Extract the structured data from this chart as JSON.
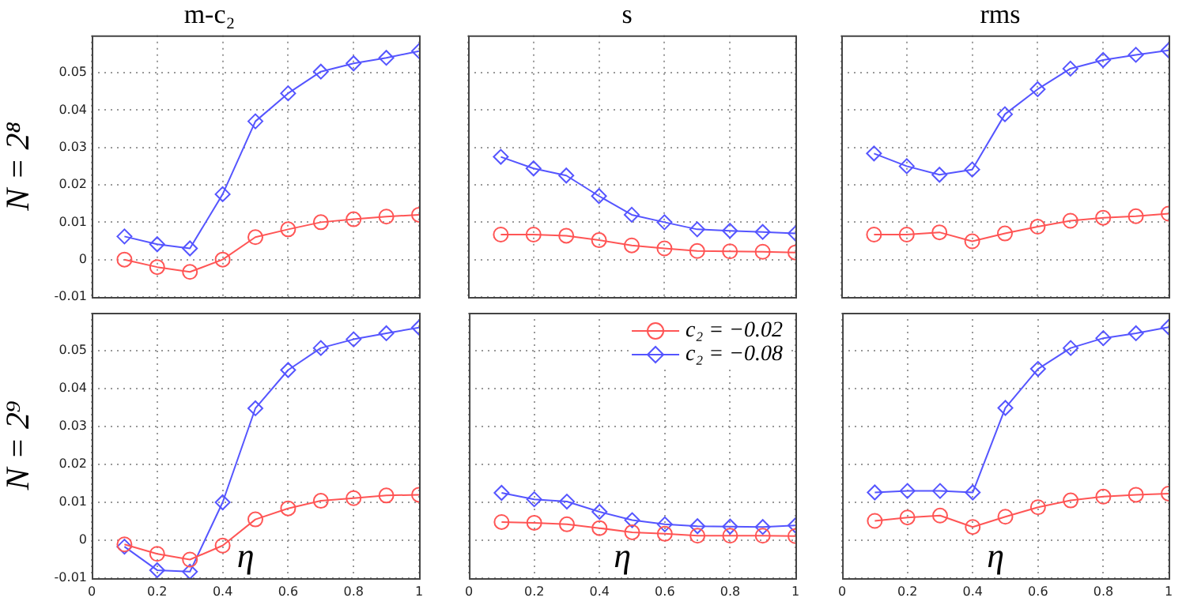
{
  "chart_data": [
    {
      "type": "line",
      "title": "m-c₂",
      "ylabel": "N = 2⁸",
      "x": [
        0.1,
        0.2,
        0.3,
        0.4,
        0.5,
        0.6,
        0.7,
        0.8,
        0.9,
        1
      ],
      "xlim": [
        0,
        1
      ],
      "xticks": [
        0,
        0.2,
        0.4,
        0.6,
        0.8,
        1
      ],
      "ylim": [
        -0.01,
        0.06
      ],
      "yticks": [
        -0.01,
        0,
        0.01,
        0.02,
        0.03,
        0.04,
        0.05
      ],
      "tick_labels": "y",
      "grid": true,
      "series": [
        {
          "color": "#ff5555",
          "marker": "circle",
          "values": [
            0,
            -0.002,
            -0.0033,
            0,
            0.006,
            0.0081,
            0.01,
            0.0108,
            0.0115,
            0.012
          ]
        },
        {
          "color": "#5555ff",
          "marker": "diamond",
          "values": [
            0.0062,
            0.0041,
            0.003,
            0.0175,
            0.037,
            0.0445,
            0.0503,
            0.0525,
            0.054,
            0.0558
          ]
        }
      ]
    },
    {
      "type": "line",
      "title": "s",
      "x": [
        0.1,
        0.2,
        0.3,
        0.4,
        0.5,
        0.6,
        0.7,
        0.8,
        0.9,
        1
      ],
      "xlim": [
        0,
        1
      ],
      "xticks": [
        0,
        0.2,
        0.4,
        0.6,
        0.8,
        1
      ],
      "ylim": [
        -0.01,
        0.06
      ],
      "yticks": [
        -0.01,
        0,
        0.01,
        0.02,
        0.03,
        0.04,
        0.05
      ],
      "tick_labels": false,
      "grid": true,
      "series": [
        {
          "color": "#ff5555",
          "marker": "circle",
          "values": [
            0.0067,
            0.0067,
            0.0064,
            0.0052,
            0.0038,
            0.003,
            0.0023,
            0.0022,
            0.0021,
            0.0019
          ]
        },
        {
          "color": "#5555ff",
          "marker": "diamond",
          "values": [
            0.0275,
            0.0244,
            0.0225,
            0.017,
            0.012,
            0.01,
            0.0081,
            0.0077,
            0.0074,
            0.007
          ]
        }
      ]
    },
    {
      "type": "line",
      "title": "rms",
      "x": [
        0.1,
        0.2,
        0.3,
        0.4,
        0.5,
        0.6,
        0.7,
        0.8,
        0.9,
        1
      ],
      "xlim": [
        0,
        1
      ],
      "xticks": [
        0,
        0.2,
        0.4,
        0.6,
        0.8,
        1
      ],
      "ylim": [
        -0.01,
        0.06
      ],
      "yticks": [
        -0.01,
        0,
        0.01,
        0.02,
        0.03,
        0.04,
        0.05
      ],
      "tick_labels": false,
      "grid": true,
      "series": [
        {
          "color": "#ff5555",
          "marker": "circle",
          "values": [
            0.0067,
            0.0067,
            0.0073,
            0.0049,
            0.007,
            0.0088,
            0.0104,
            0.0112,
            0.0116,
            0.0123
          ]
        },
        {
          "color": "#5555ff",
          "marker": "diamond",
          "values": [
            0.0284,
            0.025,
            0.0227,
            0.0241,
            0.0389,
            0.0456,
            0.0511,
            0.0534,
            0.0548,
            0.056
          ]
        }
      ]
    },
    {
      "type": "line",
      "ylabel": "N = 2⁹",
      "xlabel": "η",
      "x": [
        0.1,
        0.2,
        0.3,
        0.4,
        0.5,
        0.6,
        0.7,
        0.8,
        0.9,
        1
      ],
      "xlim": [
        0,
        1
      ],
      "xticks": [
        0,
        0.2,
        0.4,
        0.6,
        0.8,
        1
      ],
      "ylim": [
        -0.01,
        0.06
      ],
      "yticks": [
        -0.01,
        0,
        0.01,
        0.02,
        0.03,
        0.04,
        0.05
      ],
      "grid": true,
      "series": [
        {
          "color": "#ff5555",
          "marker": "circle",
          "values": [
            -0.0011,
            -0.0036,
            -0.0051,
            -0.0014,
            0.0055,
            0.0084,
            0.0104,
            0.0111,
            0.0118,
            0.012
          ]
        },
        {
          "color": "#5555ff",
          "marker": "diamond",
          "values": [
            -0.0017,
            -0.0079,
            -0.0083,
            0.01,
            0.0348,
            0.0449,
            0.0507,
            0.053,
            0.0546,
            0.0561
          ]
        }
      ]
    },
    {
      "type": "line",
      "xlabel": "η",
      "x": [
        0.1,
        0.2,
        0.3,
        0.4,
        0.5,
        0.6,
        0.7,
        0.8,
        0.9,
        1
      ],
      "xlim": [
        0,
        1
      ],
      "xticks": [
        0,
        0.2,
        0.4,
        0.6,
        0.8,
        1
      ],
      "ylim": [
        -0.01,
        0.06
      ],
      "yticks": [
        -0.01,
        0,
        0.01,
        0.02,
        0.03,
        0.04,
        0.05
      ],
      "tick_labels": "x",
      "grid": true,
      "legend": "top right",
      "series": [
        {
          "name": "c₂ = −0.02",
          "color": "#ff5555",
          "marker": "circle",
          "values": [
            0.0048,
            0.0046,
            0.0042,
            0.0032,
            0.0021,
            0.0017,
            0.0012,
            0.0012,
            0.0012,
            0.0011
          ]
        },
        {
          "name": "c₂ = −0.08",
          "color": "#5555ff",
          "marker": "diamond",
          "values": [
            0.0125,
            0.0108,
            0.0102,
            0.0075,
            0.0053,
            0.0042,
            0.0037,
            0.0036,
            0.0035,
            0.0039
          ]
        }
      ]
    },
    {
      "type": "line",
      "xlabel": "η",
      "x": [
        0.1,
        0.2,
        0.3,
        0.4,
        0.5,
        0.6,
        0.7,
        0.8,
        0.9,
        1
      ],
      "xlim": [
        0,
        1
      ],
      "xticks": [
        0,
        0.2,
        0.4,
        0.6,
        0.8,
        1
      ],
      "ylim": [
        -0.01,
        0.06
      ],
      "yticks": [
        -0.01,
        0,
        0.01,
        0.02,
        0.03,
        0.04,
        0.05
      ],
      "tick_labels": "x",
      "grid": true,
      "series": [
        {
          "color": "#ff5555",
          "marker": "circle",
          "values": [
            0.0051,
            0.006,
            0.0065,
            0.0035,
            0.0062,
            0.0087,
            0.0105,
            0.0115,
            0.012,
            0.0123
          ]
        },
        {
          "color": "#5555ff",
          "marker": "diamond",
          "values": [
            0.0126,
            0.013,
            0.013,
            0.0126,
            0.0349,
            0.0452,
            0.0507,
            0.0533,
            0.0546,
            0.0562
          ]
        }
      ]
    }
  ]
}
